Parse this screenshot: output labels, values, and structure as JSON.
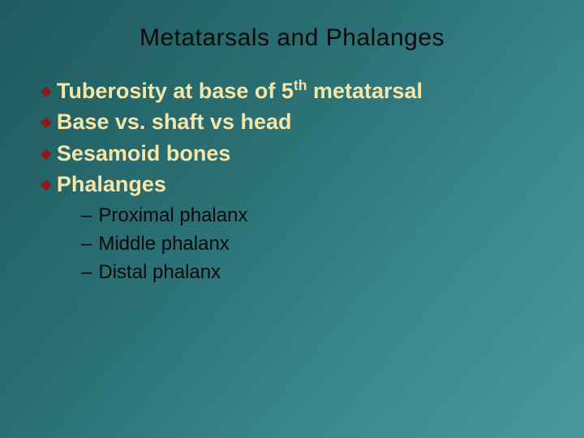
{
  "title": "Metatarsals and Phalanges",
  "bullets": [
    {
      "pre": "Tuberosity at base of 5",
      "sup": "th",
      "post": " metatarsal"
    },
    {
      "pre": "Base vs. shaft vs head",
      "sup": "",
      "post": ""
    },
    {
      "pre": "Sesamoid bones",
      "sup": "",
      "post": ""
    },
    {
      "pre": "Phalanges",
      "sup": "",
      "post": ""
    }
  ],
  "subs": [
    "Proximal phalanx",
    "Middle phalanx",
    "Distal phalanx"
  ],
  "colors": {
    "title": "#0a0a0a",
    "bullet_icon": "#8b1a1a",
    "bullet_text": "#f5e6a8",
    "sub_text": "#0a0a0a",
    "bg_from": "#1f5a5e",
    "bg_to": "#4a989d"
  },
  "dash": "–",
  "diamond": "◆"
}
